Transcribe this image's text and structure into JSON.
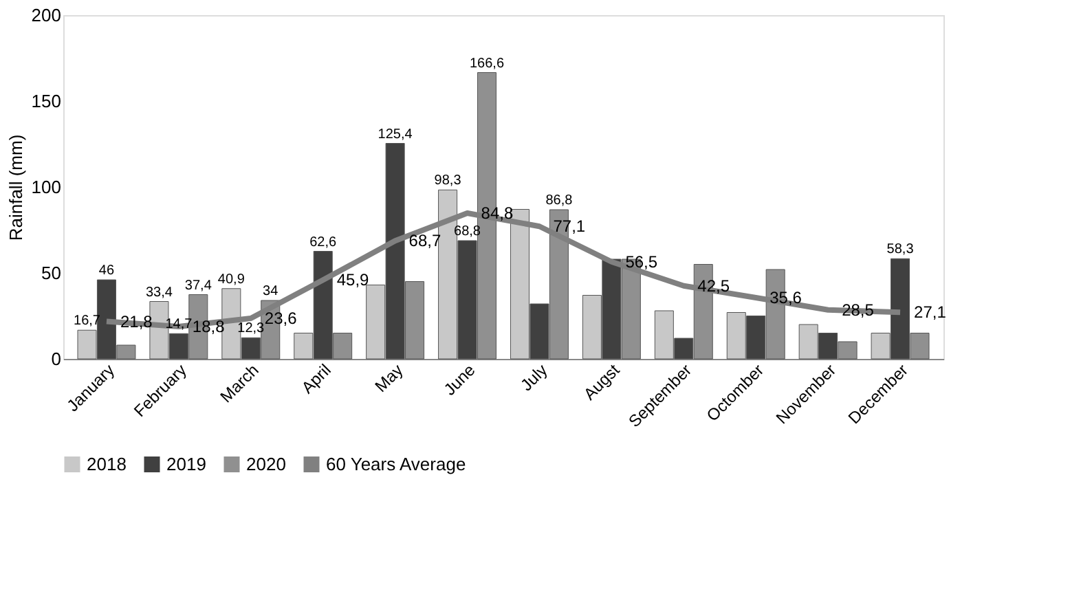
{
  "chart_data": {
    "type": "bar",
    "ylabel": "Rainfall (mm)",
    "categories": [
      "January",
      "February",
      "March",
      "April",
      "May",
      "June",
      "July",
      "Augst",
      "September",
      "Octomber",
      "November",
      "December"
    ],
    "series": [
      {
        "name": "2018",
        "color": "#c8c8c8",
        "values": [
          16.7,
          33.4,
          40.9,
          15,
          43,
          98.3,
          87,
          37,
          28,
          27,
          20,
          15
        ],
        "value_labels": [
          "16,7",
          "33,4",
          "40,9",
          null,
          null,
          "98,3",
          null,
          null,
          null,
          null,
          null,
          null
        ]
      },
      {
        "name": "2019",
        "color": "#404040",
        "values": [
          46,
          14.7,
          12.3,
          62.6,
          125.4,
          68.8,
          32,
          58,
          12,
          25,
          15,
          58.3
        ],
        "value_labels": [
          "46",
          "14,7",
          "12,3",
          "62,6",
          "125,4",
          "68,8",
          null,
          null,
          null,
          null,
          null,
          "58,3"
        ]
      },
      {
        "name": "2020",
        "color": "#909090",
        "values": [
          8,
          37.4,
          34,
          15,
          45,
          166.6,
          86.8,
          58,
          55,
          52,
          10,
          15
        ],
        "value_labels": [
          null,
          "37,4",
          "34",
          null,
          null,
          "166,6",
          "86,8",
          null,
          null,
          null,
          null,
          null
        ]
      },
      {
        "name": "60 Years Average",
        "type": "line",
        "color": "#808080",
        "values": [
          21.8,
          18.8,
          23.6,
          45.9,
          68.7,
          84.8,
          77.1,
          56.5,
          42.5,
          35.6,
          28.5,
          27.1
        ],
        "value_labels": [
          "21,8",
          "18,8",
          "23,6",
          "45,9",
          "68,7",
          "84,8",
          "77,1",
          "56,5",
          "42,5",
          "35,6",
          "28,5",
          "27,1"
        ]
      }
    ],
    "ylim": [
      0,
      200
    ],
    "yticks": [
      0,
      50,
      100,
      150,
      200
    ],
    "grid": false,
    "legend": "bottom"
  }
}
